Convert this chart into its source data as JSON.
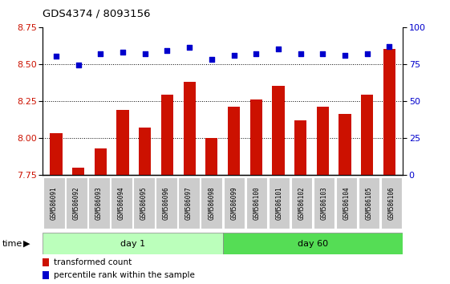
{
  "title": "GDS4374 / 8093156",
  "samples": [
    "GSM586091",
    "GSM586092",
    "GSM586093",
    "GSM586094",
    "GSM586095",
    "GSM586096",
    "GSM586097",
    "GSM586098",
    "GSM586099",
    "GSM586100",
    "GSM586101",
    "GSM586102",
    "GSM586103",
    "GSM586104",
    "GSM586105",
    "GSM586106"
  ],
  "red_values": [
    8.03,
    7.8,
    7.93,
    8.19,
    8.07,
    8.29,
    8.38,
    8.0,
    8.21,
    8.26,
    8.35,
    8.12,
    8.21,
    8.16,
    8.29,
    8.6
  ],
  "blue_values": [
    80,
    74,
    82,
    83,
    82,
    84,
    86,
    78,
    81,
    82,
    85,
    82,
    82,
    81,
    82,
    87
  ],
  "ylim_left": [
    7.75,
    8.75
  ],
  "ylim_right": [
    0,
    100
  ],
  "yticks_left": [
    7.75,
    8.0,
    8.25,
    8.5,
    8.75
  ],
  "yticks_right": [
    0,
    25,
    50,
    75,
    100
  ],
  "day1_count": 8,
  "day60_count": 8,
  "day1_color": "#bbffbb",
  "day60_color": "#55dd55",
  "bar_color": "#cc1100",
  "dot_color": "#0000cc",
  "background_color": "#ffffff",
  "tick_label_box_color": "#cccccc",
  "grid_yticks": [
    8.0,
    8.25,
    8.5
  ]
}
